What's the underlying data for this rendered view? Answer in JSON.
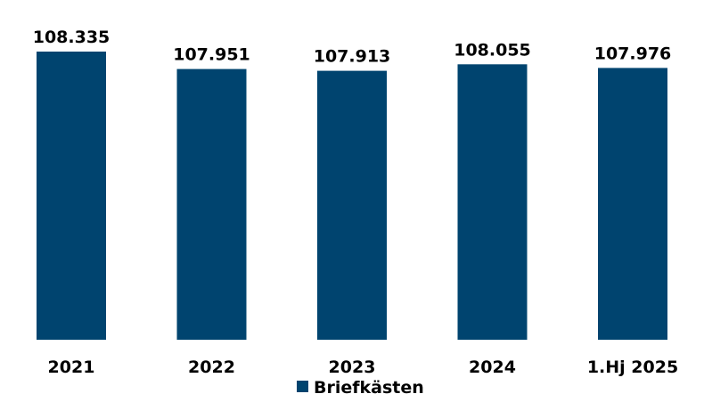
{
  "chart_data": {
    "type": "bar",
    "categories": [
      "2021",
      "2022",
      "2023",
      "2024",
      "1.Hj 2025"
    ],
    "series": [
      {
        "name": "Briefkästen",
        "values": [
          108335,
          107951,
          107913,
          108055,
          107976
        ],
        "value_labels": [
          "108.335",
          "107.951",
          "107.913",
          "108.055",
          "107.976"
        ]
      }
    ],
    "title": "",
    "xlabel": "",
    "ylabel": "",
    "ylim": [
      102000,
      108335
    ],
    "grid": false,
    "legend_position": "bottom",
    "colors": {
      "bar": "#00446f"
    }
  }
}
